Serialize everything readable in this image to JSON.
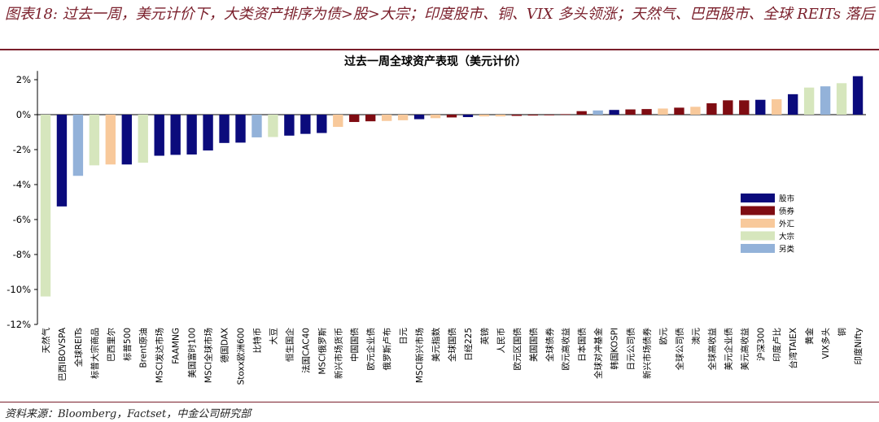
{
  "figure": {
    "title": "图表18: 过去一周，美元计价下，大类资产排序为债>股>大宗；印度股市、铜、VIX 多头领涨；天然气、巴西股市、全球 REITs 落后",
    "source": "资料来源：Bloomberg，Factset，中金公司研究部"
  },
  "colors": {
    "股市": "#0b0b7c",
    "债券": "#7f0c12",
    "外汇": "#f8c99b",
    "大宗": "#d6e6bd",
    "另类": "#93b2d9"
  },
  "chart_data": {
    "type": "bar",
    "title": "过去一周全球资产表现（美元计价）",
    "xlabel": "",
    "ylabel": "",
    "ylim": [
      -12,
      2.5
    ],
    "yticks": [
      {
        "value": 2,
        "label": "2%"
      },
      {
        "value": 0,
        "label": "0%"
      },
      {
        "value": -2,
        "label": "-2%"
      },
      {
        "value": -4,
        "label": "-4%"
      },
      {
        "value": -6,
        "label": "-6%"
      },
      {
        "value": -8,
        "label": "-8%"
      },
      {
        "value": -10,
        "label": "-10%"
      },
      {
        "value": -12,
        "label": "-12%"
      }
    ],
    "legend": {
      "position": "right",
      "entries": [
        "股市",
        "债券",
        "外汇",
        "大宗",
        "另类"
      ]
    },
    "categories": [
      "天然气",
      "巴西IBOVSPA",
      "全球REITs",
      "标普大宗商品",
      "巴西里尔",
      "标普500",
      "Brent原油",
      "MSCI发达市场",
      "FAAMNG",
      "美国富时100",
      "MSCI全球市场",
      "德国DAX",
      "Stoxx欧洲600",
      "比特币",
      "大豆",
      "恒生国企",
      "法国CAC40",
      "MSCI俄罗斯",
      "新兴市场货币",
      "中国国债",
      "欧元企业债",
      "俄罗斯卢布",
      "日元",
      "MSCI新兴市场",
      "美元指数",
      "全球国债",
      "日经225",
      "英镑",
      "人民币",
      "欧元区国债",
      "美国国债",
      "全球债券",
      "欧元高收益",
      "日本国债",
      "全球对冲基金",
      "韩国KOSPI",
      "日元公司债",
      "新兴市场债券",
      "欧元",
      "全球公司债",
      "澳元",
      "全球高收益",
      "美元企业债",
      "美元高收益",
      "沪深300",
      "印度卢比",
      "台湾TAIEX",
      "黄金",
      "VIX多头",
      "铜",
      "印度Nifty"
    ],
    "values": [
      -10.4,
      -5.25,
      -3.5,
      -2.9,
      -2.85,
      -2.85,
      -2.75,
      -2.35,
      -2.3,
      -2.28,
      -2.05,
      -1.62,
      -1.6,
      -1.3,
      -1.28,
      -1.2,
      -1.1,
      -1.05,
      -0.7,
      -0.42,
      -0.38,
      -0.36,
      -0.32,
      -0.26,
      -0.2,
      -0.16,
      -0.14,
      -0.1,
      -0.1,
      -0.07,
      -0.05,
      -0.03,
      0.03,
      0.2,
      0.24,
      0.27,
      0.3,
      0.32,
      0.35,
      0.4,
      0.45,
      0.65,
      0.82,
      0.82,
      0.85,
      0.88,
      1.17,
      1.55,
      1.62,
      1.8,
      2.2
    ],
    "groups": [
      "大宗",
      "股市",
      "另类",
      "大宗",
      "外汇",
      "股市",
      "大宗",
      "股市",
      "股市",
      "股市",
      "股市",
      "股市",
      "股市",
      "另类",
      "大宗",
      "股市",
      "股市",
      "股市",
      "外汇",
      "债券",
      "债券",
      "外汇",
      "外汇",
      "股市",
      "外汇",
      "债券",
      "股市",
      "外汇",
      "外汇",
      "债券",
      "债券",
      "债券",
      "债券",
      "债券",
      "另类",
      "股市",
      "债券",
      "债券",
      "外汇",
      "债券",
      "外汇",
      "债券",
      "债券",
      "债券",
      "股市",
      "外汇",
      "股市",
      "大宗",
      "另类",
      "大宗",
      "股市"
    ]
  }
}
